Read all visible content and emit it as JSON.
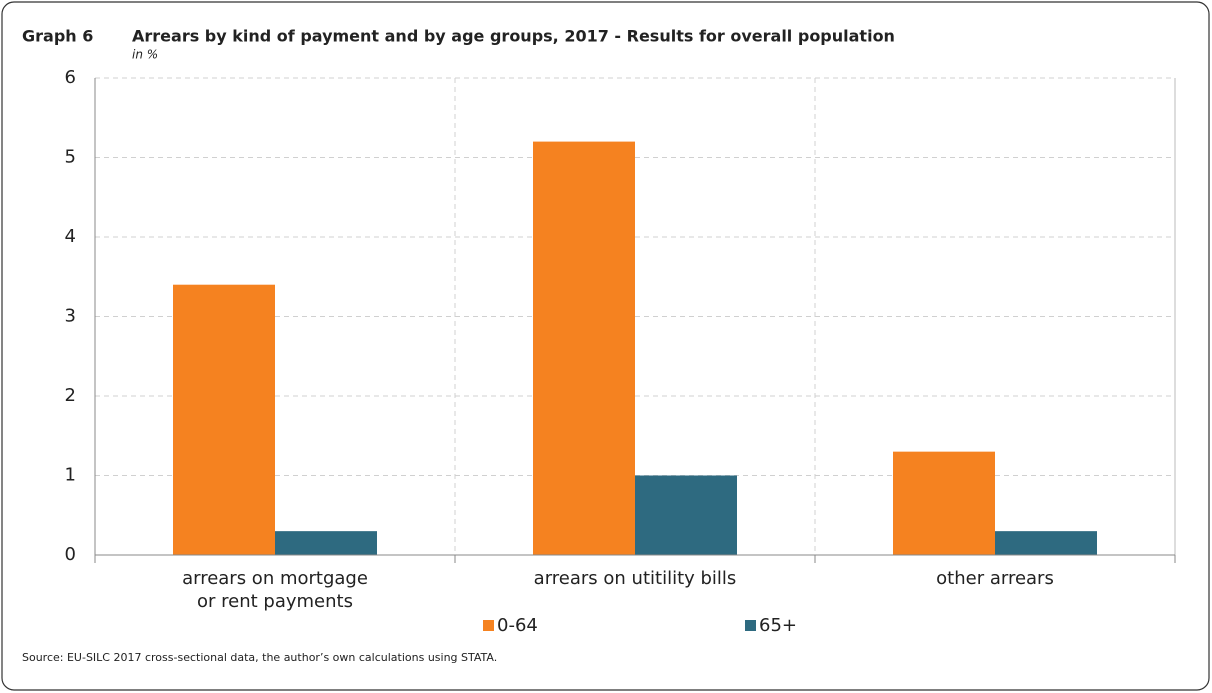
{
  "chart_data": {
    "type": "bar",
    "label": "Graph 6",
    "title": "Arrears by kind of payment and by age groups, 2017 - Results for overall population",
    "subtitle": "in %",
    "categories": [
      "arrears on mortgage\nor rent payments",
      "arrears on utitility bills",
      "other arrears"
    ],
    "series": [
      {
        "name": "0-64",
        "color": "#f58220",
        "values": [
          3.4,
          5.2,
          1.3
        ]
      },
      {
        "name": "65+",
        "color": "#2e6a80",
        "values": [
          0.3,
          1.0,
          0.3
        ]
      }
    ],
    "ylim": [
      0,
      6
    ],
    "yticks": [
      0,
      1,
      2,
      3,
      4,
      5,
      6
    ],
    "grid": true,
    "source": "Source: EU-SILC 2017 cross-sectional data, the author’s own calculations using STATA."
  }
}
